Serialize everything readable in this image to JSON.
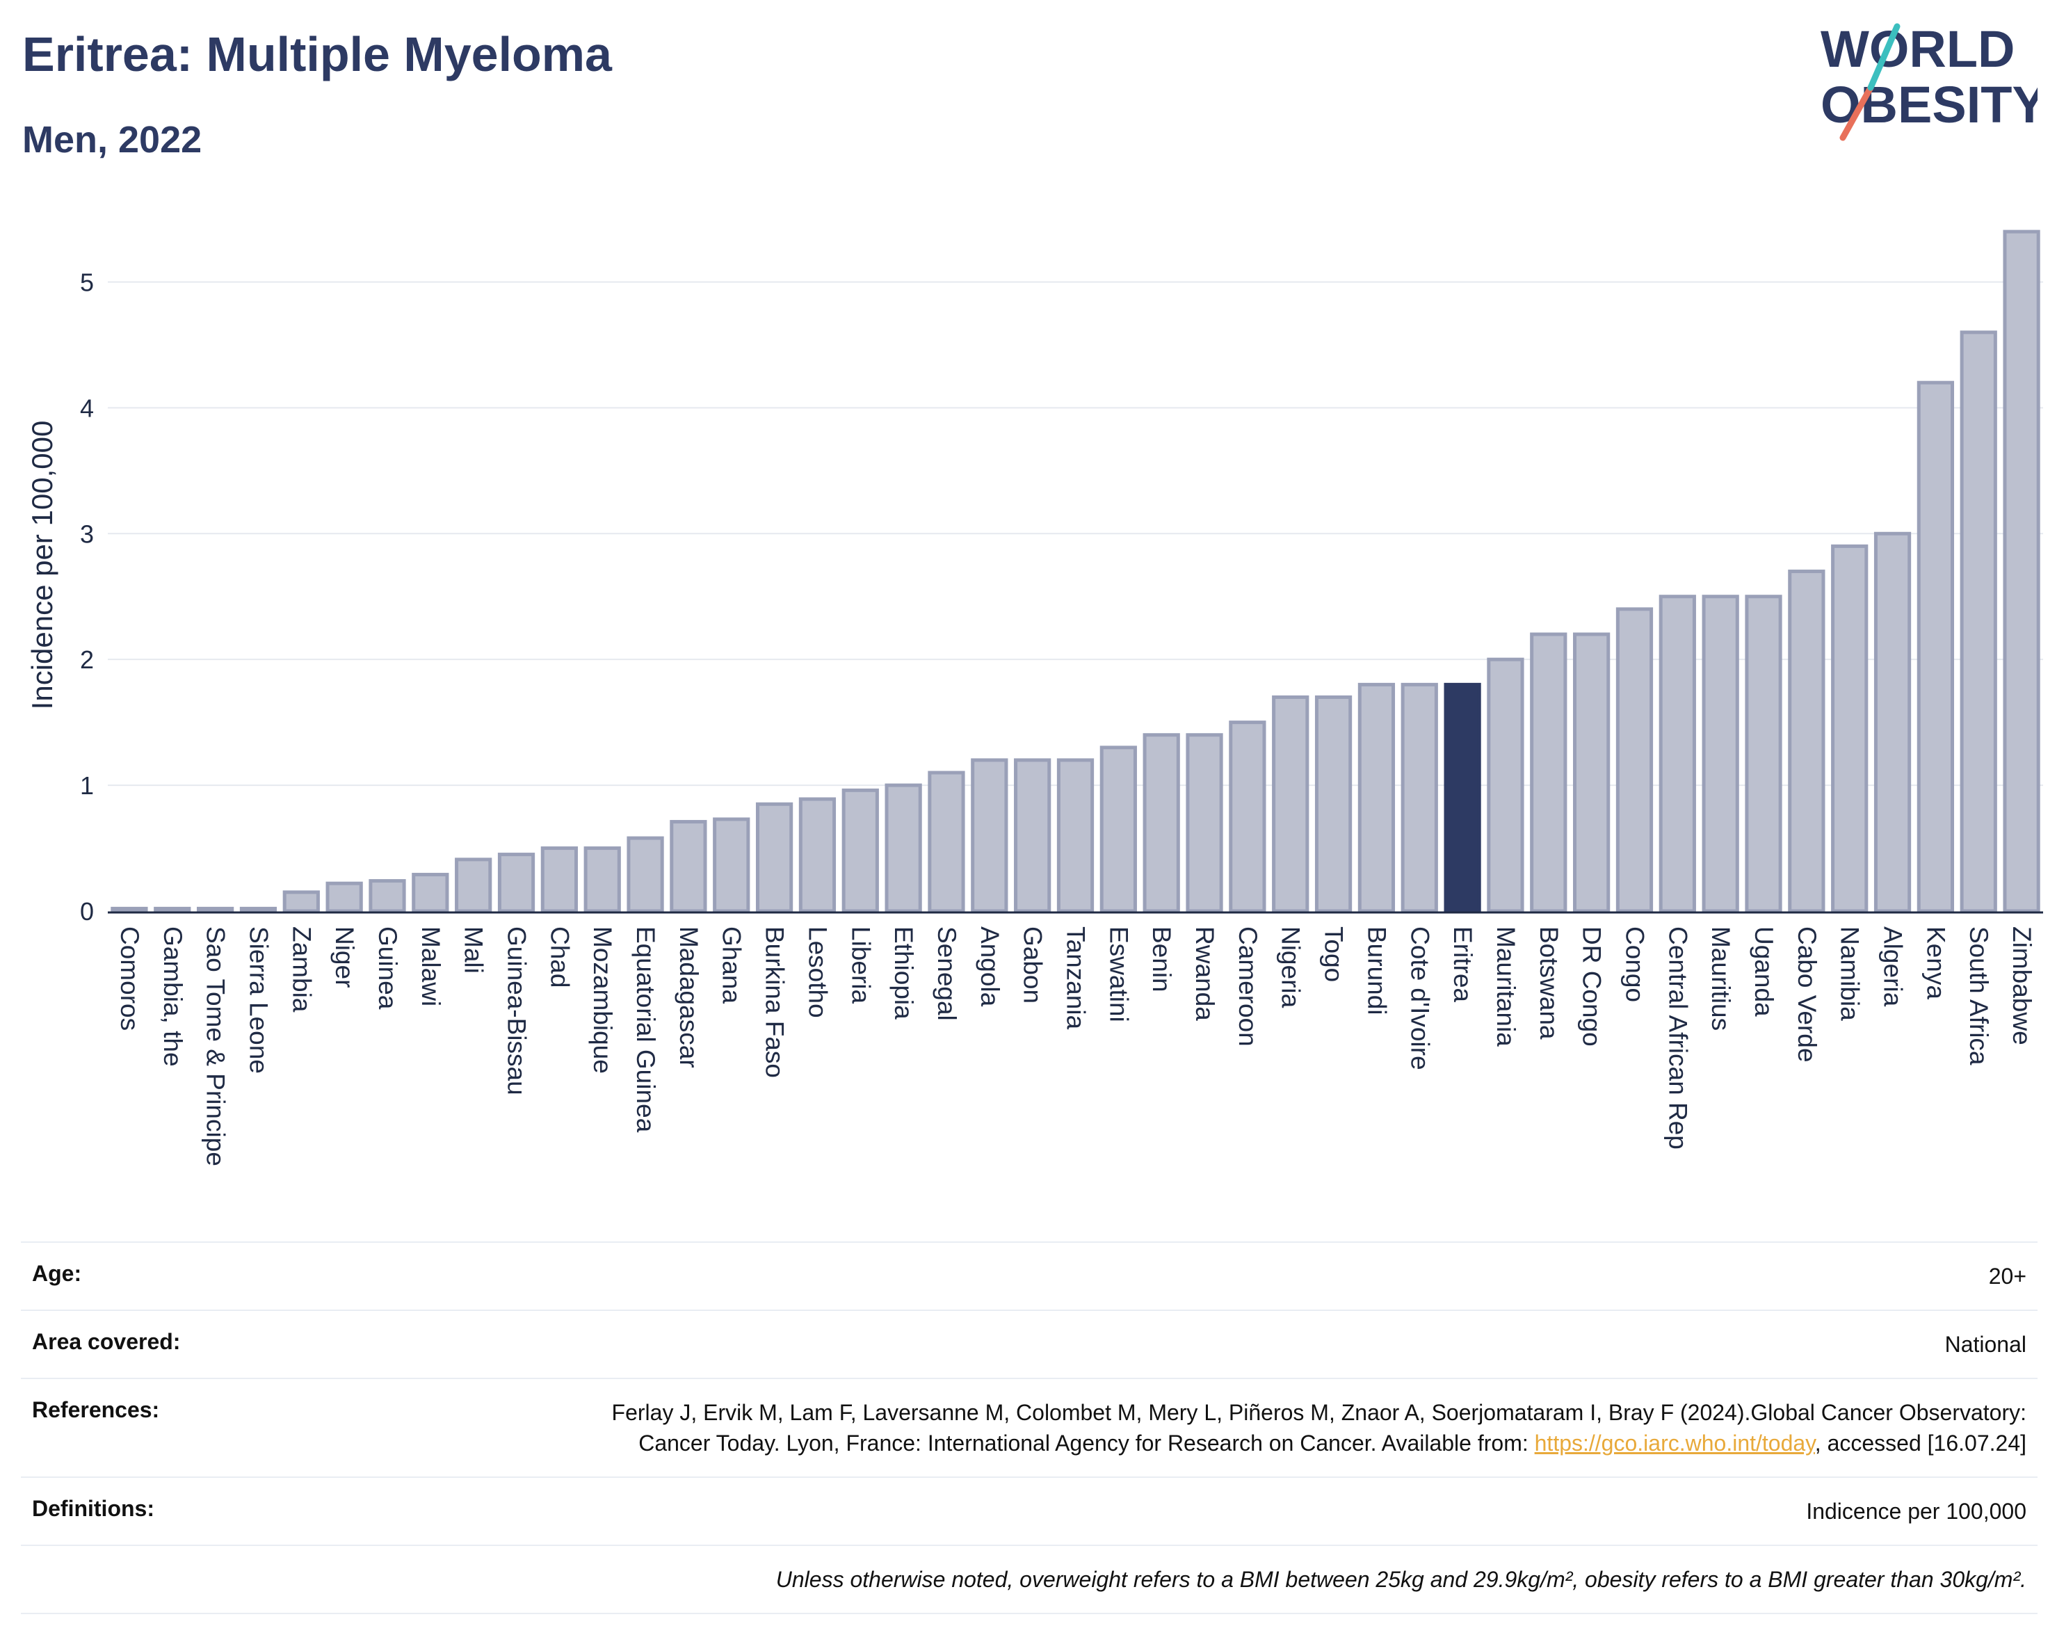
{
  "header": {
    "title": "Eritrea: Multiple Myeloma",
    "subtitle": "Men, 2022"
  },
  "logo": {
    "line1": "WORLD",
    "line2": "OBESITY",
    "slash_colors": [
      "#e8705a",
      "#3cbfbf"
    ],
    "text_color": "#2d3a63"
  },
  "chart_data": {
    "type": "bar",
    "ylabel": "Incidence per 100,000",
    "ylim": [
      0,
      5.5
    ],
    "yticks": [
      0,
      1,
      2,
      3,
      4,
      5
    ],
    "grid": true,
    "highlight": "Eritrea",
    "colors": {
      "bar": "#bcc0cf",
      "bar_border": "#9aa0b8",
      "highlight": "#2d3a63",
      "grid": "#e6e9ef",
      "axis": "#1f2a44"
    },
    "categories": [
      "Comoros",
      "Gambia, the",
      "Sao Tome & Principe",
      "Sierra Leone",
      "Zambia",
      "Niger",
      "Guinea",
      "Malawi",
      "Mali",
      "Guinea-Bissau",
      "Chad",
      "Mozambique",
      "Equatorial Guinea",
      "Madagascar",
      "Ghana",
      "Burkina Faso",
      "Lesotho",
      "Liberia",
      "Ethiopia",
      "Senegal",
      "Angola",
      "Gabon",
      "Tanzania",
      "Eswatini",
      "Benin",
      "Rwanda",
      "Cameroon",
      "Nigeria",
      "Togo",
      "Burundi",
      "Cote d'Ivoire",
      "Eritrea",
      "Mauritania",
      "Botswana",
      "DR Congo",
      "Congo",
      "Central African Rep",
      "Mauritius",
      "Uganda",
      "Cabo Verde",
      "Namibia",
      "Algeria",
      "Kenya",
      "South Africa",
      "Zimbabwe"
    ],
    "values": [
      0.02,
      0.02,
      0.02,
      0.02,
      0.15,
      0.22,
      0.24,
      0.29,
      0.41,
      0.45,
      0.5,
      0.5,
      0.58,
      0.71,
      0.73,
      0.85,
      0.89,
      0.96,
      1.0,
      1.1,
      1.2,
      1.2,
      1.2,
      1.3,
      1.4,
      1.4,
      1.5,
      1.7,
      1.7,
      1.8,
      1.8,
      1.8,
      2.0,
      2.2,
      2.2,
      2.4,
      2.5,
      2.5,
      2.5,
      2.7,
      2.9,
      3.0,
      4.2,
      4.6,
      5.4
    ]
  },
  "info": {
    "age_label": "Age:",
    "age_value": "20+",
    "area_label": "Area covered:",
    "area_value": "National",
    "references_label": "References:",
    "references_text": "Ferlay J, Ervik M, Lam F, Laversanne M, Colombet M, Mery L, Piñeros M, Znaor A, Soerjomataram I, Bray F (2024).Global Cancer Observatory: Cancer Today. Lyon, France: International Agency for Research on Cancer. Available from:",
    "references_link": "https://gco.iarc.who.int/today",
    "references_tail": ", accessed [16.07.24]",
    "definitions_label": "Definitions:",
    "definitions_value": "Indicence per 100,000",
    "note": "Unless otherwise noted, overweight refers to a BMI between 25kg and 29.9kg/m², obesity refers to a BMI greater than 30kg/m²."
  }
}
